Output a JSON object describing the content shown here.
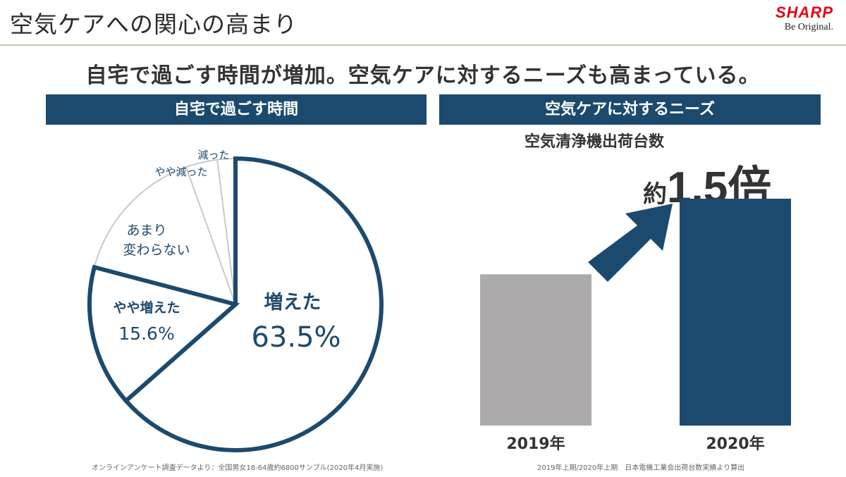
{
  "header": {
    "title": "空気ケアへの関心の高まり",
    "logo_text": "SHARP",
    "logo_tagline": "Be Original."
  },
  "headline": "自宅で過ごす時間が増加。空気ケアに対するニーズも高まっている。",
  "colors": {
    "navy": "#1c4a6e",
    "gray": "#acaaaa",
    "logo_red": "#e60012",
    "slice_divider": "#c9c9c9"
  },
  "sections": {
    "left_banner": "自宅で過ごす時間",
    "right_banner": "空気ケアに対するニーズ",
    "right_subtitle": "空気清浄機出荷台数",
    "multiplier_prefix": "約",
    "multiplier_value": "1.5倍"
  },
  "footnotes": {
    "left": "オンラインアンケート調査データより：全国男女18-64歳約6800サンプル(2020年4月実施)",
    "right": "2019年上期/2020年上期　日本電機工業会出荷台数実績より算出"
  },
  "chart_data": [
    {
      "type": "pie",
      "slices": [
        {
          "label": "増えた",
          "value_label": "63.5%",
          "value": 63.5,
          "highlight": true
        },
        {
          "label": "やや増えた",
          "value_label": "15.6%",
          "value": 15.6,
          "highlight": true
        },
        {
          "label": "あまり 変わらない",
          "value": 15.4,
          "highlight": false
        },
        {
          "label": "やや減った",
          "value": 3.5,
          "highlight": false
        },
        {
          "label": "減った",
          "value": 2.0,
          "highlight": false
        }
      ]
    },
    {
      "type": "bar",
      "categories": [
        "2019年",
        "2020年"
      ],
      "values": [
        1.0,
        1.5
      ],
      "bar_colors": [
        "#acaaaa",
        "#1c4a6e"
      ],
      "annotation": "約1.5倍"
    }
  ]
}
